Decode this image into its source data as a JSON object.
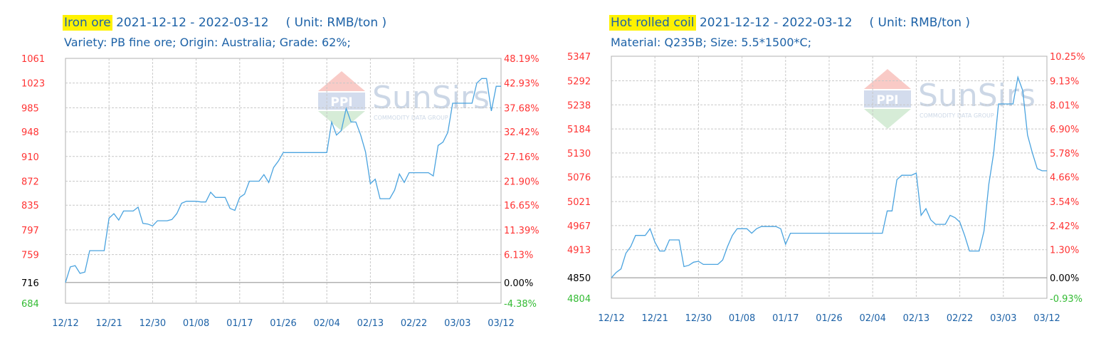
{
  "charts": [
    {
      "title_highlight": "Iron ore",
      "title_rest": " 2021-12-12 - 2022-03-12",
      "unit": "( Unit: RMB/ton )",
      "subtitle": "Variety: PB fine ore; Origin: Australia; Grade: 62%;",
      "watermark": "SunSirs",
      "watermark_sub": "COMMODITY DATA GROUP",
      "watermark_logo": "PPI"
    },
    {
      "title_highlight": "Hot rolled coil",
      "title_rest": " 2021-12-12 - 2022-03-12",
      "unit": "( Unit: RMB/ton )",
      "subtitle": "Material: Q235B; Size: 5.5*1500*C;",
      "watermark": "SunSirs",
      "watermark_sub": "COMMODITY DATA GROUP",
      "watermark_logo": "PPI"
    }
  ],
  "colors": {
    "line": "#4aa3df",
    "axis_red": "#ff3333",
    "axis_green": "#33bb33",
    "axis_text": "#1d62a7",
    "grid": "#c8c8c8",
    "base": "#999999"
  },
  "chart_data": [
    {
      "type": "line",
      "title": "Iron ore 2021-12-12 - 2022-03-12",
      "unit": "RMB/ton",
      "base_value": 716,
      "ylim": [
        684,
        1061
      ],
      "y_ticks": [
        684,
        716,
        759,
        797,
        835,
        872,
        910,
        948,
        985,
        1023,
        1061
      ],
      "y_tick_labels": [
        "684",
        "716",
        "759",
        "797",
        "835",
        "872",
        "910",
        "948",
        "985",
        "1023",
        "1061"
      ],
      "pct_labels": [
        "-4.38%",
        "0.00%",
        "6.13%",
        "11.39%",
        "16.65%",
        "21.90%",
        "27.16%",
        "32.42%",
        "37.68%",
        "42.93%",
        "48.19%"
      ],
      "x_tick_labels": [
        "12/12",
        "12/21",
        "12/30",
        "01/08",
        "01/17",
        "01/26",
        "02/04",
        "02/13",
        "02/22",
        "03/03",
        "03/12"
      ],
      "xlim": [
        0,
        90
      ],
      "grid": true,
      "series": [
        {
          "x": [
            0,
            1,
            2,
            3,
            4,
            5,
            6,
            7,
            8,
            9,
            10,
            11,
            12,
            13,
            14,
            15,
            16,
            17,
            18,
            19,
            20,
            21,
            22,
            23,
            24,
            25,
            26,
            27,
            28,
            29,
            30,
            31,
            32,
            33,
            34,
            35,
            36,
            37,
            38,
            39,
            40,
            41,
            42,
            43,
            44,
            45,
            46,
            47,
            48,
            49,
            50,
            51,
            52,
            53,
            54,
            55,
            56,
            57,
            58,
            59,
            60,
            61,
            62,
            63,
            64,
            65,
            66,
            67,
            68,
            69,
            70,
            71,
            72,
            73,
            74,
            75,
            76,
            77,
            78,
            79,
            80,
            81,
            82,
            83,
            84,
            85,
            86,
            87,
            88,
            89,
            90
          ],
          "values": [
            716,
            740,
            742,
            730,
            732,
            765,
            765,
            765,
            765,
            815,
            822,
            812,
            826,
            826,
            826,
            832,
            807,
            806,
            803,
            811,
            811,
            811,
            813,
            822,
            838,
            841,
            841,
            841,
            840,
            840,
            855,
            847,
            847,
            847,
            830,
            827,
            847,
            852,
            872,
            872,
            872,
            882,
            870,
            893,
            903,
            916,
            916,
            916,
            916,
            916,
            916,
            916,
            916,
            916,
            916,
            963,
            943,
            950,
            984,
            963,
            963,
            943,
            917,
            868,
            875,
            845,
            845,
            845,
            858,
            883,
            870,
            885,
            885,
            885,
            885,
            885,
            880,
            927,
            932,
            947,
            992,
            992,
            992,
            992,
            992,
            1023,
            1030,
            1030,
            980,
            1018,
            1018
          ]
        }
      ]
    },
    {
      "type": "line",
      "title": "Hot rolled coil 2021-12-12 - 2022-03-12",
      "unit": "RMB/ton",
      "base_value": 4850,
      "ylim": [
        4804,
        5347
      ],
      "y_ticks": [
        4804,
        4850,
        4913,
        4967,
        5021,
        5076,
        5130,
        5184,
        5238,
        5292,
        5347
      ],
      "y_tick_labels": [
        "4804",
        "4850",
        "4913",
        "4967",
        "5021",
        "5076",
        "5130",
        "5184",
        "5238",
        "5292",
        "5347"
      ],
      "pct_labels": [
        "-0.93%",
        "0.00%",
        "1.30%",
        "2.42%",
        "3.54%",
        "4.66%",
        "5.78%",
        "6.90%",
        "8.01%",
        "9.13%",
        "10.25%"
      ],
      "x_tick_labels": [
        "12/12",
        "12/21",
        "12/30",
        "01/08",
        "01/17",
        "01/26",
        "02/04",
        "02/13",
        "02/22",
        "03/03",
        "03/12"
      ],
      "xlim": [
        0,
        90
      ],
      "grid": true,
      "series": [
        {
          "x": [
            0,
            1,
            2,
            3,
            4,
            5,
            6,
            7,
            8,
            9,
            10,
            11,
            12,
            13,
            14,
            15,
            16,
            17,
            18,
            19,
            20,
            21,
            22,
            23,
            24,
            25,
            26,
            27,
            28,
            29,
            30,
            31,
            32,
            33,
            34,
            35,
            36,
            37,
            38,
            39,
            40,
            41,
            42,
            43,
            44,
            45,
            46,
            47,
            48,
            49,
            50,
            51,
            52,
            53,
            54,
            55,
            56,
            57,
            58,
            59,
            60,
            61,
            62,
            63,
            64,
            65,
            66,
            67,
            68,
            69,
            70,
            71,
            72,
            73,
            74,
            75,
            76,
            77,
            78,
            79,
            80,
            81,
            82,
            83,
            84,
            85,
            86,
            87,
            88,
            89,
            90
          ],
          "values": [
            4850,
            4862,
            4870,
            4905,
            4920,
            4945,
            4945,
            4945,
            4960,
            4930,
            4910,
            4910,
            4935,
            4935,
            4935,
            4875,
            4878,
            4885,
            4887,
            4880,
            4880,
            4880,
            4880,
            4890,
            4920,
            4945,
            4960,
            4960,
            4960,
            4950,
            4960,
            4965,
            4965,
            4965,
            4965,
            4960,
            4925,
            4950,
            4950,
            4950,
            4950,
            4950,
            4950,
            4950,
            4950,
            4950,
            4950,
            4950,
            4950,
            4950,
            4950,
            4950,
            4950,
            4950,
            4950,
            4950,
            4950,
            5000,
            5000,
            5070,
            5080,
            5080,
            5080,
            5085,
            4990,
            5005,
            4980,
            4970,
            4970,
            4970,
            4990,
            4985,
            4975,
            4945,
            4910,
            4910,
            4910,
            4955,
            5060,
            5130,
            5240,
            5240,
            5240,
            5240,
            5300,
            5270,
            5170,
            5130,
            5095,
            5090,
            5090
          ]
        }
      ]
    }
  ]
}
